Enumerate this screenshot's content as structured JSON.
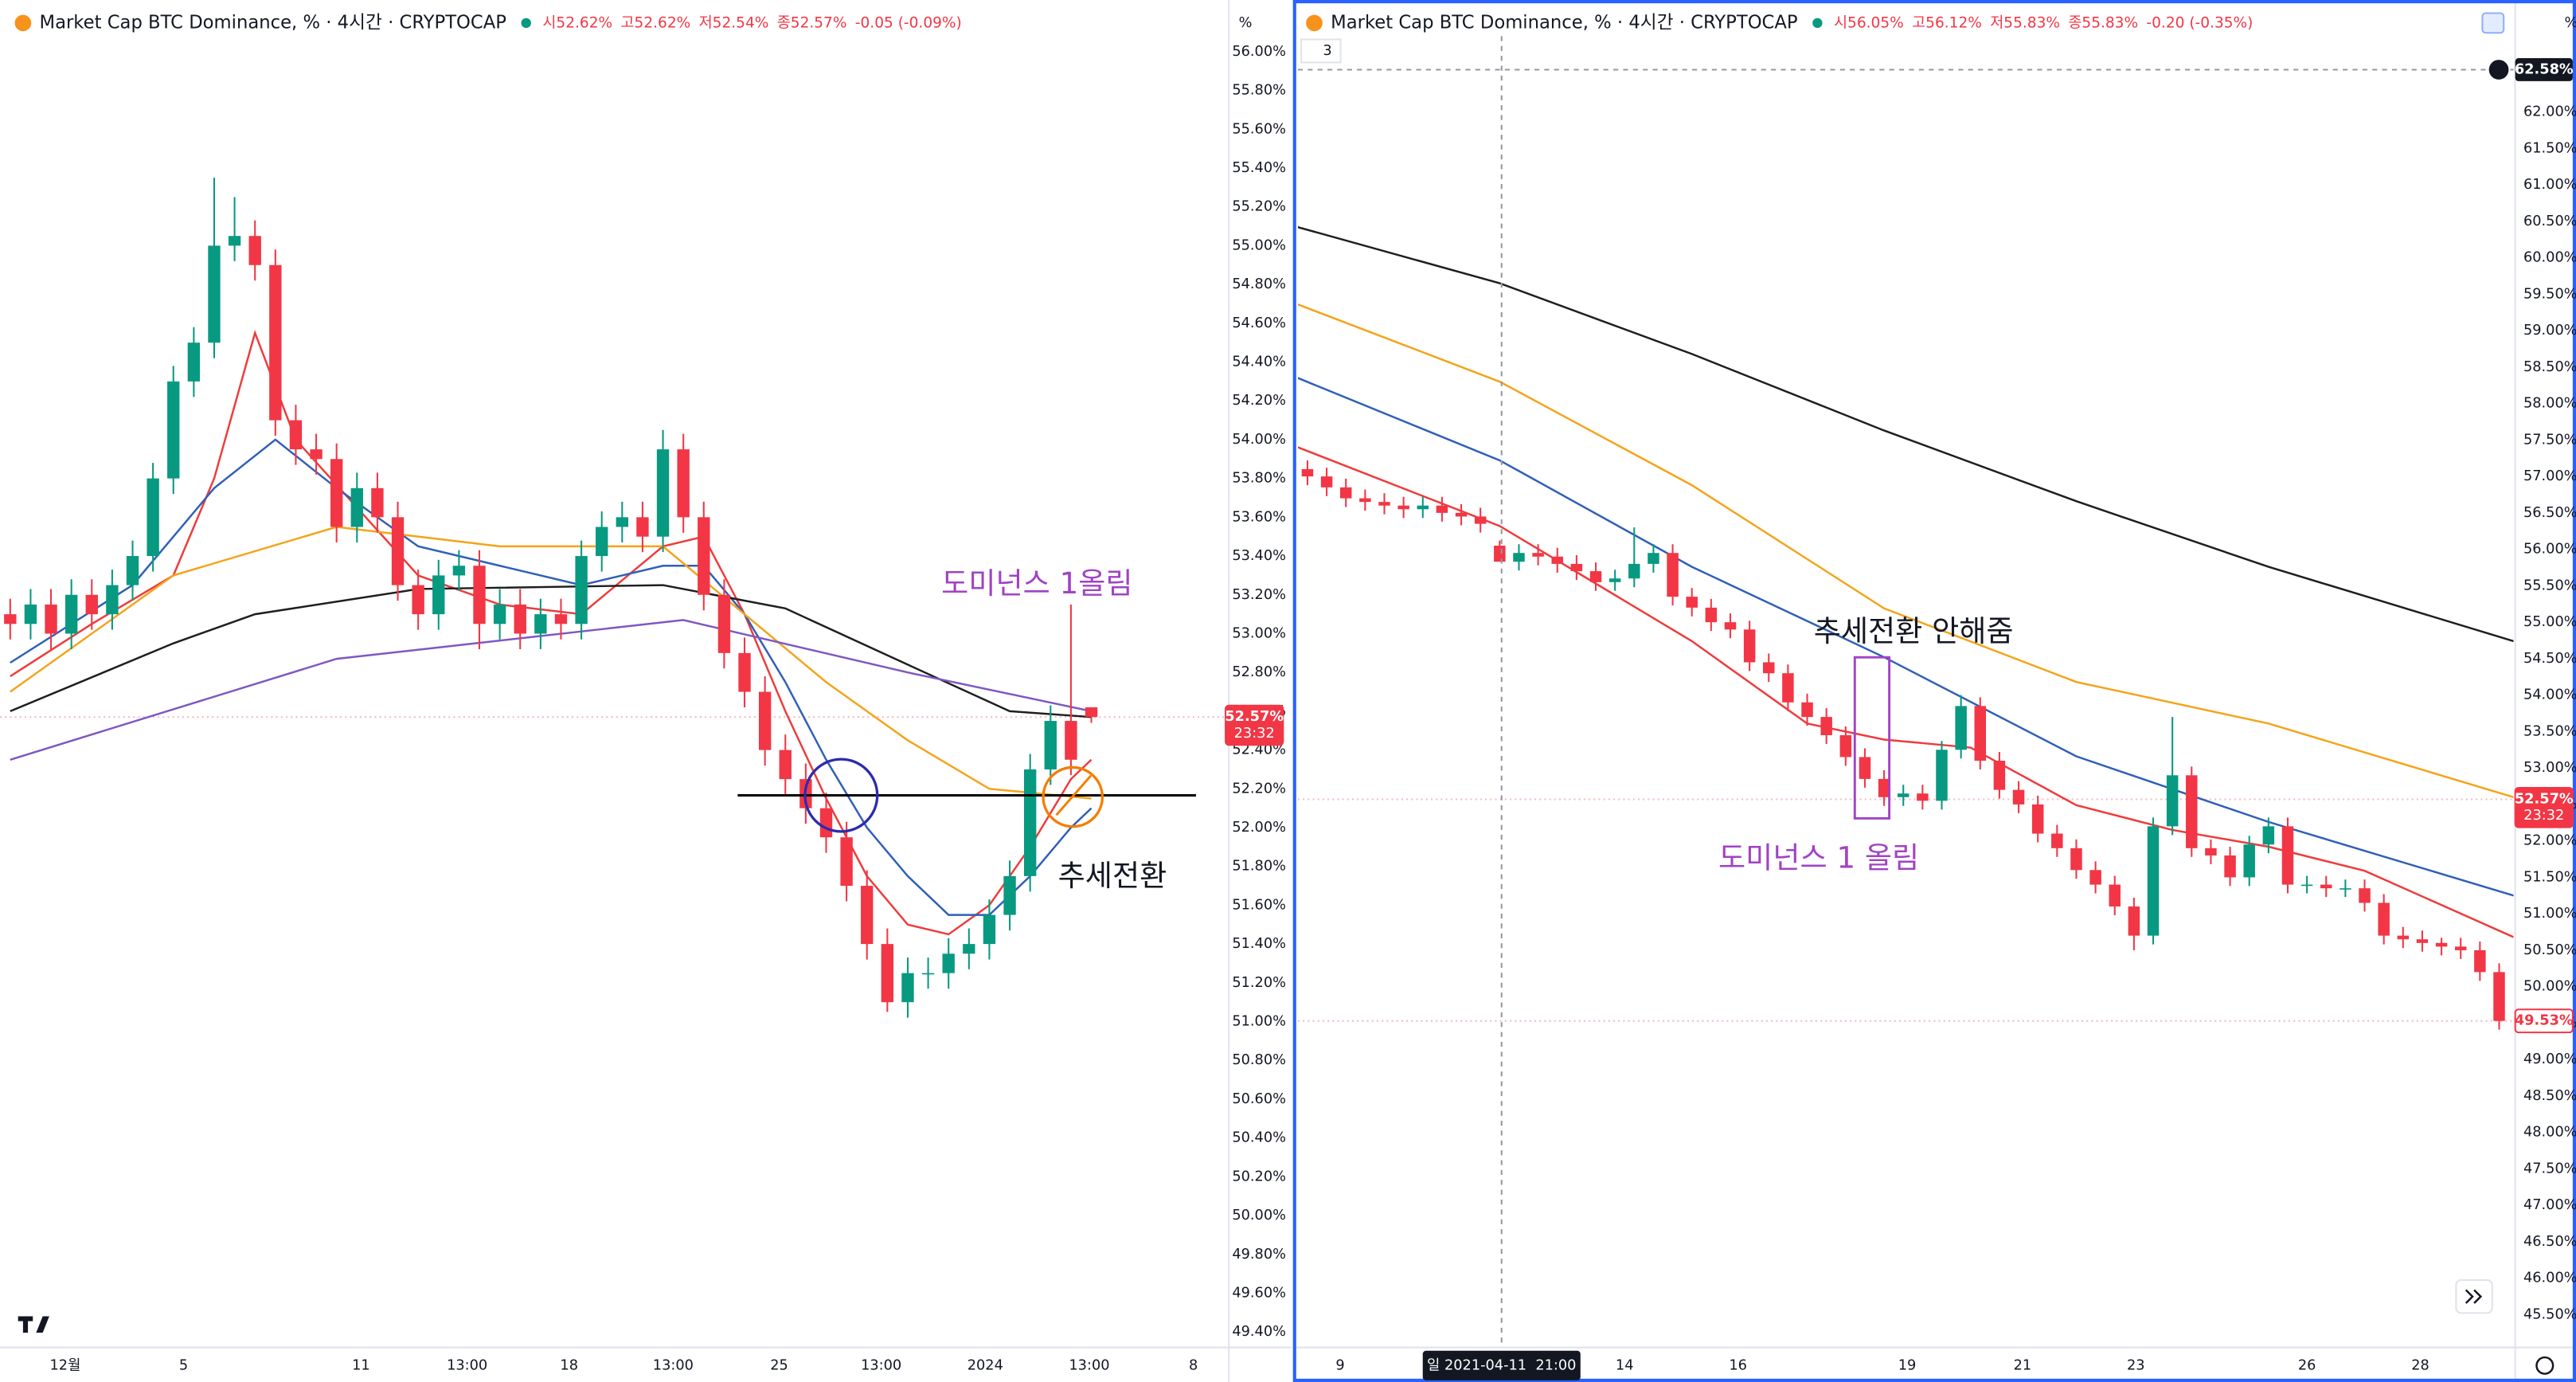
{
  "chart_data": [
    {
      "type": "candlestick",
      "title": "Market Cap BTC Dominance, % · 4시간 · CRYPTOCAP",
      "legend_values": [
        "시52.62%",
        "고52.62%",
        "저52.54%",
        "종52.57%",
        "-0.05 (-0.09%)"
      ],
      "unit_label": "%",
      "up_color": "#089981",
      "down_color": "#f23645",
      "xlim": [
        -0.5,
        59.5
      ],
      "xticks": [
        {
          "value": 2.7,
          "label": "12월"
        },
        {
          "value": 8.5,
          "label": "5"
        },
        {
          "value": 17.2,
          "label": "11"
        },
        {
          "value": 22.4,
          "label": "13:00"
        },
        {
          "value": 27.4,
          "label": "18"
        },
        {
          "value": 32.5,
          "label": "13:00"
        },
        {
          "value": 37.7,
          "label": "25"
        },
        {
          "value": 42.7,
          "label": "13:00"
        },
        {
          "value": 47.8,
          "label": "2024"
        },
        {
          "value": 52.9,
          "label": "13:00"
        },
        {
          "value": 58,
          "label": "8"
        }
      ],
      "ylim": [
        49.32,
        56.08
      ],
      "yticks": [
        {
          "value": 49.4,
          "label": "49.40%"
        },
        {
          "value": 49.6,
          "label": "49.60%"
        },
        {
          "value": 49.8,
          "label": "49.80%"
        },
        {
          "value": 50.0,
          "label": "50.00%"
        },
        {
          "value": 50.2,
          "label": "50.20%"
        },
        {
          "value": 50.4,
          "label": "50.40%"
        },
        {
          "value": 50.6,
          "label": "50.60%"
        },
        {
          "value": 50.8,
          "label": "50.80%"
        },
        {
          "value": 51.0,
          "label": "51.00%"
        },
        {
          "value": 51.2,
          "label": "51.20%"
        },
        {
          "value": 51.4,
          "label": "51.40%"
        },
        {
          "value": 51.6,
          "label": "51.60%"
        },
        {
          "value": 51.8,
          "label": "51.80%"
        },
        {
          "value": 52.0,
          "label": "52.00%"
        },
        {
          "value": 52.2,
          "label": "52.20%"
        },
        {
          "value": 52.4,
          "label": "52.40%"
        },
        {
          "value": 52.6,
          "label": "52.60%"
        },
        {
          "value": 52.8,
          "label": "52.80%"
        },
        {
          "value": 53.0,
          "label": "53.00%"
        },
        {
          "value": 53.2,
          "label": "53.20%"
        },
        {
          "value": 53.4,
          "label": "53.40%"
        },
        {
          "value": 53.6,
          "label": "53.60%"
        },
        {
          "value": 53.8,
          "label": "53.80%"
        },
        {
          "value": 54.0,
          "label": "54.00%"
        },
        {
          "value": 54.2,
          "label": "54.20%"
        },
        {
          "value": 54.4,
          "label": "54.40%"
        },
        {
          "value": 54.6,
          "label": "54.60%"
        },
        {
          "value": 54.8,
          "label": "54.80%"
        },
        {
          "value": 55.0,
          "label": "55.00%"
        },
        {
          "value": 55.2,
          "label": "55.20%"
        },
        {
          "value": 55.4,
          "label": "55.40%"
        },
        {
          "value": 55.6,
          "label": "55.60%"
        },
        {
          "value": 55.8,
          "label": "55.80%"
        },
        {
          "value": 56.0,
          "label": "56.00%"
        }
      ],
      "open": [
        53.1,
        53.05,
        53.15,
        53.0,
        53.2,
        53.1,
        53.25,
        53.4,
        53.8,
        54.3,
        54.5,
        55.0,
        55.05,
        54.9,
        54.1,
        53.95,
        53.9,
        53.55,
        53.75,
        53.6,
        53.25,
        53.1,
        53.3,
        53.35,
        53.05,
        53.15,
        53.0,
        53.1,
        53.05,
        53.4,
        53.55,
        53.6,
        53.5,
        53.95,
        53.6,
        53.2,
        52.9,
        52.7,
        52.4,
        52.25,
        52.1,
        51.95,
        51.7,
        51.4,
        51.1,
        51.25,
        51.25,
        51.35,
        51.4,
        51.55,
        51.75,
        52.3,
        52.55,
        52.62
      ],
      "high": [
        53.18,
        53.23,
        53.23,
        53.28,
        53.28,
        53.33,
        53.48,
        53.88,
        54.38,
        54.58,
        55.35,
        55.25,
        55.13,
        54.98,
        54.18,
        54.03,
        53.98,
        53.83,
        53.83,
        53.68,
        53.33,
        53.38,
        53.43,
        53.43,
        53.23,
        53.23,
        53.18,
        53.18,
        53.48,
        53.63,
        53.68,
        53.68,
        54.05,
        54.03,
        53.68,
        53.28,
        52.98,
        52.78,
        52.48,
        52.33,
        52.18,
        52.03,
        51.78,
        51.48,
        51.33,
        51.33,
        51.43,
        51.48,
        51.63,
        51.83,
        52.38,
        52.63,
        53.15,
        52.62
      ],
      "low": [
        52.97,
        52.97,
        52.92,
        52.92,
        53.02,
        53.02,
        53.17,
        53.32,
        53.72,
        54.22,
        54.42,
        54.92,
        54.82,
        54.02,
        53.87,
        53.82,
        53.47,
        53.47,
        53.52,
        53.17,
        53.02,
        53.02,
        53.22,
        52.92,
        52.97,
        52.92,
        52.92,
        52.97,
        52.97,
        53.32,
        53.47,
        53.42,
        53.42,
        53.52,
        53.12,
        52.82,
        52.62,
        52.32,
        52.17,
        52.02,
        51.87,
        51.62,
        51.32,
        51.05,
        51.02,
        51.17,
        51.17,
        51.27,
        51.32,
        51.47,
        51.67,
        52.22,
        52.27,
        52.54
      ],
      "close": [
        53.05,
        53.15,
        53.0,
        53.2,
        53.1,
        53.25,
        53.4,
        53.8,
        54.3,
        54.5,
        55.0,
        55.05,
        54.9,
        54.1,
        53.95,
        53.9,
        53.55,
        53.75,
        53.6,
        53.25,
        53.1,
        53.3,
        53.35,
        53.05,
        53.15,
        53.0,
        53.1,
        53.05,
        53.4,
        53.55,
        53.6,
        53.5,
        53.95,
        53.6,
        53.2,
        52.9,
        52.7,
        52.4,
        52.25,
        52.1,
        51.95,
        51.7,
        51.4,
        51.1,
        51.25,
        51.25,
        51.35,
        51.4,
        51.55,
        51.75,
        52.3,
        52.55,
        52.35,
        52.57
      ],
      "series": [
        {
          "color": "#ef3b3b",
          "x": [
            0,
            4,
            8,
            10,
            12,
            14,
            17,
            20,
            24,
            28,
            32,
            34,
            36,
            38,
            40,
            42,
            44,
            46,
            48,
            50,
            52,
            53
          ],
          "values": [
            52.78,
            53.05,
            53.3,
            53.8,
            54.55,
            54.0,
            53.65,
            53.3,
            53.15,
            53.1,
            53.45,
            53.5,
            53.1,
            52.6,
            52.15,
            51.75,
            51.5,
            51.45,
            51.6,
            51.9,
            52.25,
            52.35
          ]
        },
        {
          "color": "#2f5fb8",
          "x": [
            0,
            6,
            10,
            13,
            16,
            20,
            24,
            28,
            32,
            34,
            36,
            38,
            40,
            42,
            44,
            46,
            48,
            50,
            52,
            53
          ],
          "values": [
            52.85,
            53.25,
            53.75,
            54.0,
            53.75,
            53.45,
            53.35,
            53.25,
            53.35,
            53.35,
            53.1,
            52.75,
            52.35,
            52.0,
            51.75,
            51.55,
            51.55,
            51.75,
            52.0,
            52.1
          ]
        },
        {
          "color": "#f5a31a",
          "x": [
            0,
            8,
            16,
            24,
            32,
            36,
            40,
            44,
            48,
            53
          ],
          "values": [
            52.7,
            53.3,
            53.55,
            53.45,
            53.45,
            53.1,
            52.75,
            52.45,
            52.2,
            52.15
          ]
        },
        {
          "color": "#1e1e1e",
          "x": [
            0,
            8,
            12,
            20,
            32,
            38,
            44,
            49,
            53
          ],
          "values": [
            52.6,
            52.95,
            53.1,
            53.23,
            53.25,
            53.13,
            52.84,
            52.6,
            52.57
          ]
        },
        {
          "color": "#7e57c2",
          "x": [
            0,
            16,
            33,
            44,
            53
          ],
          "values": [
            52.35,
            52.87,
            53.07,
            52.8,
            52.6
          ]
        }
      ],
      "price_labels": [
        {
          "value": 52.57,
          "label": "52.57%",
          "time": "23:32",
          "style": "filled"
        }
      ],
      "annotations": [
        "도미넌스 1올림",
        "추세전환"
      ]
    },
    {
      "type": "candlestick",
      "title": "Market Cap BTC Dominance, % · 4시간 · CRYPTOCAP",
      "legend_values": [
        "시56.05%",
        "고56.12%",
        "저55.83%",
        "종55.83%",
        "-0.20 (-0.35%)"
      ],
      "unit_label": "%",
      "badge": "3",
      "up_color": "#089981",
      "down_color": "#f23645",
      "xlim": [
        -0.5,
        62.75
      ],
      "xticks": [
        {
          "value": 1.7,
          "label": "9"
        },
        {
          "value": 16.5,
          "label": "14"
        },
        {
          "value": 22.4,
          "label": "16"
        },
        {
          "value": 31.2,
          "label": "19"
        },
        {
          "value": 37.2,
          "label": "21"
        },
        {
          "value": 43.1,
          "label": "23"
        },
        {
          "value": 52,
          "label": "26"
        },
        {
          "value": 57.9,
          "label": "28"
        }
      ],
      "ylim": [
        45.05,
        63.04
      ],
      "yticks": [
        {
          "value": 45.5,
          "label": "45.50%"
        },
        {
          "value": 46.0,
          "label": "46.00%"
        },
        {
          "value": 46.5,
          "label": "46.50%"
        },
        {
          "value": 47.0,
          "label": "47.00%"
        },
        {
          "value": 47.5,
          "label": "47.50%"
        },
        {
          "value": 48.0,
          "label": "48.00%"
        },
        {
          "value": 48.5,
          "label": "48.50%"
        },
        {
          "value": 49.0,
          "label": "49.00%"
        },
        {
          "value": 49.5,
          "label": "49.50%"
        },
        {
          "value": 50.0,
          "label": "50.00%"
        },
        {
          "value": 50.5,
          "label": "50.50%"
        },
        {
          "value": 51.0,
          "label": "51.00%"
        },
        {
          "value": 51.5,
          "label": "51.50%"
        },
        {
          "value": 52.0,
          "label": "52.00%"
        },
        {
          "value": 52.5,
          "label": "52.50%"
        },
        {
          "value": 53.0,
          "label": "53.00%"
        },
        {
          "value": 53.5,
          "label": "53.50%"
        },
        {
          "value": 54.0,
          "label": "54.00%"
        },
        {
          "value": 54.5,
          "label": "54.50%"
        },
        {
          "value": 55.0,
          "label": "55.00%"
        },
        {
          "value": 55.5,
          "label": "55.50%"
        },
        {
          "value": 56.0,
          "label": "56.00%"
        },
        {
          "value": 56.5,
          "label": "56.50%"
        },
        {
          "value": 57.0,
          "label": "57.00%"
        },
        {
          "value": 57.5,
          "label": "57.50%"
        },
        {
          "value": 58.0,
          "label": "58.00%"
        },
        {
          "value": 58.5,
          "label": "58.50%"
        },
        {
          "value": 59.0,
          "label": "59.00%"
        },
        {
          "value": 59.5,
          "label": "59.50%"
        },
        {
          "value": 60.0,
          "label": "60.00%"
        },
        {
          "value": 60.5,
          "label": "60.50%"
        },
        {
          "value": 61.0,
          "label": "61.00%"
        },
        {
          "value": 61.5,
          "label": "61.50%"
        },
        {
          "value": 62.0,
          "label": "62.00%"
        }
      ],
      "open": [
        57.1,
        57.0,
        56.85,
        56.7,
        56.65,
        56.6,
        56.55,
        56.6,
        56.5,
        56.45,
        56.05,
        55.83,
        55.95,
        55.9,
        55.8,
        55.7,
        55.55,
        55.6,
        55.8,
        55.95,
        55.35,
        55.2,
        55.0,
        54.9,
        54.45,
        54.3,
        53.9,
        53.7,
        53.45,
        53.15,
        52.85,
        52.6,
        52.65,
        52.55,
        53.25,
        53.85,
        53.1,
        52.7,
        52.5,
        52.1,
        51.9,
        51.6,
        51.4,
        51.1,
        50.7,
        52.2,
        52.9,
        51.9,
        51.8,
        51.5,
        51.95,
        52.2,
        51.4,
        51.4,
        51.35,
        51.35,
        51.15,
        50.7,
        50.65,
        50.6,
        50.55,
        50.5,
        50.2
      ],
      "high": [
        57.22,
        57.12,
        56.97,
        56.82,
        56.77,
        56.72,
        56.72,
        56.72,
        56.62,
        56.57,
        56.12,
        56.07,
        56.07,
        56.02,
        55.92,
        55.82,
        55.72,
        56.3,
        56.07,
        56.07,
        55.47,
        55.32,
        55.12,
        55.02,
        54.57,
        54.42,
        54.02,
        53.82,
        53.57,
        53.27,
        52.97,
        52.77,
        52.77,
        53.37,
        54.0,
        53.97,
        53.22,
        52.82,
        52.62,
        52.22,
        52.02,
        51.72,
        51.52,
        51.22,
        52.32,
        53.7,
        53.02,
        52.02,
        51.92,
        52.07,
        52.32,
        52.32,
        51.52,
        51.52,
        51.47,
        51.47,
        51.27,
        50.82,
        50.77,
        50.67,
        50.67,
        50.62,
        50.32
      ],
      "low": [
        56.88,
        56.73,
        56.58,
        56.53,
        56.48,
        56.43,
        56.43,
        56.38,
        56.33,
        56.23,
        55.83,
        55.71,
        55.78,
        55.68,
        55.58,
        55.43,
        55.43,
        55.48,
        55.68,
        55.23,
        55.08,
        54.88,
        54.78,
        54.33,
        54.18,
        53.78,
        53.58,
        53.33,
        53.03,
        52.73,
        52.48,
        52.48,
        52.43,
        52.43,
        53.13,
        52.98,
        52.58,
        52.38,
        51.98,
        51.78,
        51.48,
        51.28,
        50.98,
        50.5,
        50.58,
        52.08,
        51.78,
        51.68,
        51.38,
        51.38,
        51.83,
        51.28,
        51.28,
        51.23,
        51.23,
        51.03,
        50.58,
        50.53,
        50.48,
        50.43,
        50.38,
        50.08,
        49.41
      ],
      "close": [
        57.0,
        56.85,
        56.7,
        56.65,
        56.6,
        56.55,
        56.6,
        56.5,
        56.45,
        56.35,
        55.83,
        55.95,
        55.9,
        55.8,
        55.7,
        55.55,
        55.6,
        55.8,
        55.95,
        55.35,
        55.2,
        55.0,
        54.9,
        54.45,
        54.3,
        53.9,
        53.7,
        53.45,
        53.15,
        52.85,
        52.6,
        52.65,
        52.55,
        53.25,
        53.85,
        53.1,
        52.7,
        52.5,
        52.1,
        51.9,
        51.6,
        51.4,
        51.1,
        50.7,
        52.2,
        52.9,
        51.9,
        51.8,
        51.5,
        51.95,
        52.2,
        51.4,
        51.4,
        51.35,
        51.35,
        51.15,
        50.7,
        50.65,
        50.6,
        50.55,
        50.5,
        50.2,
        49.53
      ],
      "series": [
        {
          "color": "#1e1e1e",
          "x": [
            -0.5,
            10,
            20,
            30,
            40,
            50,
            62.75
          ],
          "values": [
            60.42,
            59.65,
            58.68,
            57.63,
            56.66,
            55.76,
            54.74
          ]
        },
        {
          "color": "#f5a31a",
          "x": [
            -0.5,
            10,
            20,
            30,
            40,
            50,
            62.75
          ],
          "values": [
            59.36,
            58.3,
            56.88,
            55.19,
            54.18,
            53.61,
            52.6
          ]
        },
        {
          "color": "#2f5fb8",
          "x": [
            -0.5,
            10,
            20,
            30,
            40,
            50,
            62.75
          ],
          "values": [
            58.35,
            57.22,
            55.76,
            54.52,
            53.16,
            52.26,
            51.25
          ]
        },
        {
          "color": "#ef3b3b",
          "x": [
            -0.5,
            10,
            20,
            26,
            30,
            34.5,
            40,
            45,
            50,
            55,
            62.75
          ],
          "values": [
            57.4,
            56.32,
            54.74,
            53.61,
            53.39,
            53.28,
            52.49,
            52.15,
            51.92,
            51.59,
            50.68
          ]
        }
      ],
      "price_labels": [
        {
          "value": 52.57,
          "label": "52.57%",
          "time": "23:32",
          "style": "filled"
        },
        {
          "value": 49.53,
          "label": "49.53%",
          "style": "outline"
        }
      ],
      "crosshair": {
        "x": {
          "value": 10.1,
          "label": "일 2021-04-11  21:00"
        },
        "y": {
          "value": 62.58,
          "label": "62.58%"
        }
      },
      "annotations": [
        "추세전환 안해줌",
        "도미넌스 1 올림"
      ]
    }
  ]
}
